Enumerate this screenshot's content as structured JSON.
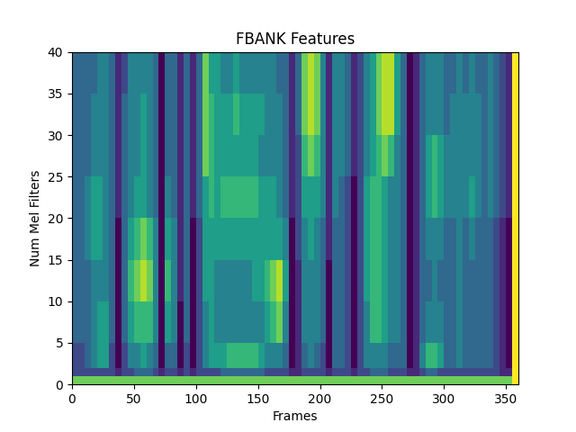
{
  "chart_data": {
    "type": "heatmap",
    "title": "FBANK Features",
    "x_label": "Frames",
    "y_label": "Num Mel Filters",
    "color": "viridis",
    "xlim": [
      0,
      360
    ],
    "ylim": [
      0,
      40
    ],
    "xticks": [
      0,
      50,
      100,
      150,
      200,
      250,
      300,
      350
    ],
    "yticks": [
      0,
      5,
      10,
      15,
      20,
      25,
      30,
      35,
      40
    ],
    "x": [
      0,
      5,
      10,
      15,
      20,
      25,
      30,
      35,
      40,
      45,
      50,
      55,
      60,
      65,
      70,
      75,
      80,
      85,
      90,
      95,
      100,
      105,
      110,
      115,
      120,
      125,
      130,
      135,
      140,
      145,
      150,
      155,
      160,
      165,
      170,
      175,
      180,
      185,
      190,
      195,
      200,
      205,
      210,
      215,
      220,
      225,
      230,
      235,
      240,
      245,
      250,
      255,
      260,
      265,
      270,
      275,
      280,
      285,
      290,
      295,
      300,
      305,
      310,
      315,
      320,
      325,
      330,
      335,
      340,
      345,
      350,
      355,
      360
    ],
    "y": [
      0,
      1,
      2,
      5,
      10,
      15,
      20,
      25,
      30,
      35,
      40
    ],
    "values": [
      [
        8,
        8,
        8,
        8,
        8,
        8,
        8,
        8,
        8,
        8,
        8,
        8,
        8,
        8,
        8,
        8,
        8,
        8,
        8,
        8,
        8,
        8,
        8,
        8,
        8,
        8,
        8,
        8,
        8,
        8,
        8,
        8,
        8,
        8,
        8,
        8,
        8,
        8,
        8,
        8,
        8,
        8,
        8,
        8,
        8,
        8,
        8,
        8,
        8,
        8,
        8,
        8,
        8,
        8,
        8,
        8,
        8,
        8,
        8,
        8,
        8,
        8,
        8,
        8,
        8,
        8,
        8,
        8,
        8,
        8,
        8,
        10
      ],
      [
        3,
        3,
        3,
        3,
        3,
        3,
        3,
        2,
        3,
        3,
        4,
        4,
        4,
        3,
        2,
        3,
        3,
        2,
        3,
        2,
        3,
        3,
        3,
        3,
        4,
        4,
        4,
        4,
        4,
        4,
        4,
        3,
        3,
        3,
        3,
        2,
        2,
        3,
        3,
        3,
        3,
        2,
        3,
        3,
        3,
        2,
        3,
        3,
        4,
        4,
        4,
        3,
        3,
        3,
        2,
        2,
        3,
        4,
        4,
        3,
        3,
        3,
        3,
        3,
        3,
        3,
        3,
        3,
        3,
        2,
        2,
        10
      ],
      [
        3,
        3,
        4,
        5,
        6,
        6,
        3,
        1,
        3,
        5,
        5,
        6,
        5,
        4,
        1,
        4,
        4,
        1,
        3,
        1,
        3,
        5,
        6,
        6,
        6,
        7,
        7,
        7,
        7,
        7,
        6,
        5,
        5,
        5,
        4,
        1,
        2,
        4,
        5,
        4,
        3,
        1,
        4,
        4,
        3,
        1,
        3,
        5,
        5,
        5,
        5,
        4,
        4,
        4,
        1,
        2,
        5,
        7,
        7,
        6,
        4,
        4,
        5,
        4,
        4,
        4,
        4,
        4,
        3,
        2,
        1,
        10
      ],
      [
        4,
        4,
        4,
        5,
        6,
        6,
        4,
        1,
        4,
        6,
        7,
        7,
        7,
        5,
        1,
        6,
        5,
        1,
        4,
        1,
        3,
        5,
        6,
        5,
        5,
        5,
        5,
        5,
        5,
        5,
        5,
        6,
        7,
        8,
        5,
        1,
        2,
        5,
        5,
        5,
        4,
        1,
        4,
        4,
        3,
        1,
        3,
        5,
        7,
        7,
        6,
        5,
        5,
        4,
        1,
        2,
        4,
        5,
        5,
        5,
        4,
        4,
        5,
        4,
        4,
        4,
        4,
        4,
        3,
        2,
        1,
        10
      ],
      [
        4,
        4,
        4,
        5,
        5,
        5,
        4,
        1,
        4,
        7,
        8,
        9,
        8,
        5,
        1,
        7,
        5,
        2,
        4,
        1,
        3,
        6,
        6,
        5,
        5,
        5,
        5,
        5,
        5,
        6,
        6,
        7,
        8,
        9,
        6,
        1,
        2,
        5,
        5,
        5,
        4,
        1,
        4,
        4,
        3,
        1,
        3,
        6,
        7,
        7,
        6,
        5,
        5,
        4,
        1,
        2,
        4,
        4,
        5,
        4,
        4,
        4,
        5,
        4,
        4,
        4,
        4,
        4,
        3,
        2,
        1,
        10
      ],
      [
        4,
        4,
        5,
        6,
        6,
        5,
        4,
        1,
        4,
        6,
        7,
        8,
        7,
        5,
        1,
        6,
        5,
        2,
        4,
        1,
        3,
        6,
        6,
        6,
        6,
        6,
        6,
        6,
        6,
        6,
        6,
        6,
        6,
        6,
        5,
        1,
        3,
        5,
        6,
        5,
        4,
        2,
        4,
        4,
        3,
        1,
        3,
        6,
        7,
        7,
        6,
        5,
        5,
        4,
        1,
        2,
        4,
        5,
        5,
        5,
        4,
        4,
        5,
        4,
        5,
        4,
        4,
        4,
        3,
        2,
        1,
        10
      ],
      [
        4,
        4,
        5,
        6,
        6,
        5,
        4,
        2,
        4,
        5,
        6,
        6,
        5,
        4,
        1,
        5,
        4,
        2,
        4,
        2,
        4,
        6,
        7,
        6,
        7,
        7,
        7,
        7,
        7,
        7,
        6,
        6,
        6,
        5,
        4,
        2,
        3,
        6,
        6,
        6,
        5,
        2,
        5,
        4,
        3,
        1,
        3,
        6,
        7,
        7,
        6,
        5,
        5,
        4,
        1,
        2,
        4,
        6,
        7,
        6,
        5,
        5,
        5,
        5,
        6,
        5,
        4,
        5,
        4,
        3,
        2,
        10
      ],
      [
        4,
        4,
        4,
        5,
        5,
        5,
        4,
        2,
        4,
        5,
        5,
        6,
        5,
        4,
        1,
        4,
        4,
        2,
        4,
        2,
        4,
        8,
        7,
        6,
        6,
        6,
        6,
        6,
        6,
        6,
        5,
        5,
        5,
        5,
        4,
        2,
        3,
        7,
        8,
        7,
        5,
        2,
        5,
        5,
        4,
        2,
        3,
        5,
        6,
        7,
        8,
        7,
        5,
        4,
        1,
        2,
        4,
        6,
        7,
        6,
        5,
        5,
        5,
        5,
        5,
        5,
        4,
        5,
        4,
        3,
        2,
        10
      ],
      [
        4,
        4,
        4,
        5,
        5,
        5,
        4,
        2,
        4,
        5,
        5,
        6,
        5,
        4,
        1,
        4,
        4,
        2,
        4,
        2,
        4,
        8,
        7,
        6,
        6,
        6,
        7,
        6,
        6,
        6,
        6,
        5,
        5,
        5,
        4,
        2,
        4,
        8,
        9,
        8,
        5,
        2,
        5,
        5,
        4,
        2,
        3,
        5,
        6,
        8,
        9,
        9,
        6,
        4,
        1,
        2,
        4,
        5,
        5,
        5,
        4,
        5,
        5,
        5,
        5,
        5,
        4,
        5,
        4,
        3,
        2,
        10
      ],
      [
        4,
        4,
        4,
        4,
        5,
        5,
        4,
        2,
        3,
        5,
        5,
        5,
        5,
        4,
        1,
        4,
        4,
        2,
        4,
        2,
        4,
        8,
        6,
        6,
        5,
        5,
        6,
        5,
        5,
        5,
        5,
        5,
        5,
        4,
        4,
        2,
        4,
        8,
        9,
        8,
        5,
        2,
        5,
        5,
        4,
        2,
        3,
        5,
        6,
        8,
        9,
        9,
        6,
        4,
        1,
        2,
        4,
        5,
        5,
        5,
        4,
        4,
        5,
        4,
        5,
        4,
        4,
        5,
        4,
        3,
        2,
        10
      ]
    ]
  }
}
